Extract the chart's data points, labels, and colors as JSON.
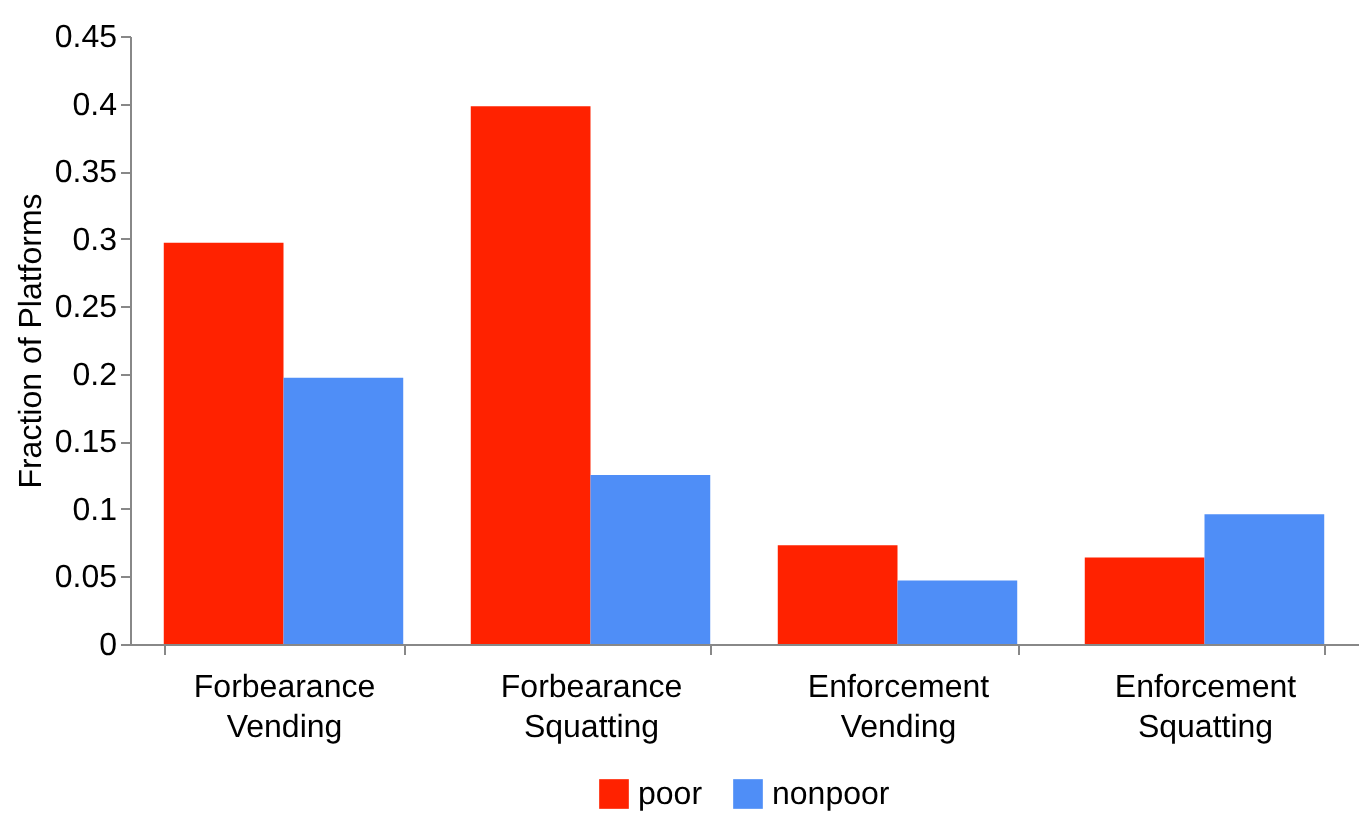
{
  "chart_data": {
    "type": "bar",
    "ylabel": "Fraction of Platforms",
    "categories": [
      "Forbearance Vending",
      "Forbearance Squatting",
      "Enforcement Vending",
      "Enforcement Squatting"
    ],
    "series": [
      {
        "name": "poor",
        "color": "#ff2200",
        "values": [
          0.297,
          0.398,
          0.073,
          0.064
        ]
      },
      {
        "name": "nonpoor",
        "color": "#4f8ef7",
        "values": [
          0.197,
          0.125,
          0.047,
          0.096
        ]
      }
    ],
    "ylim": [
      0,
      0.45
    ],
    "yticks": [
      0,
      0.05,
      0.1,
      0.15,
      0.2,
      0.25,
      0.3,
      0.35,
      0.4,
      0.45
    ],
    "grid": false,
    "legend": "bottom"
  }
}
